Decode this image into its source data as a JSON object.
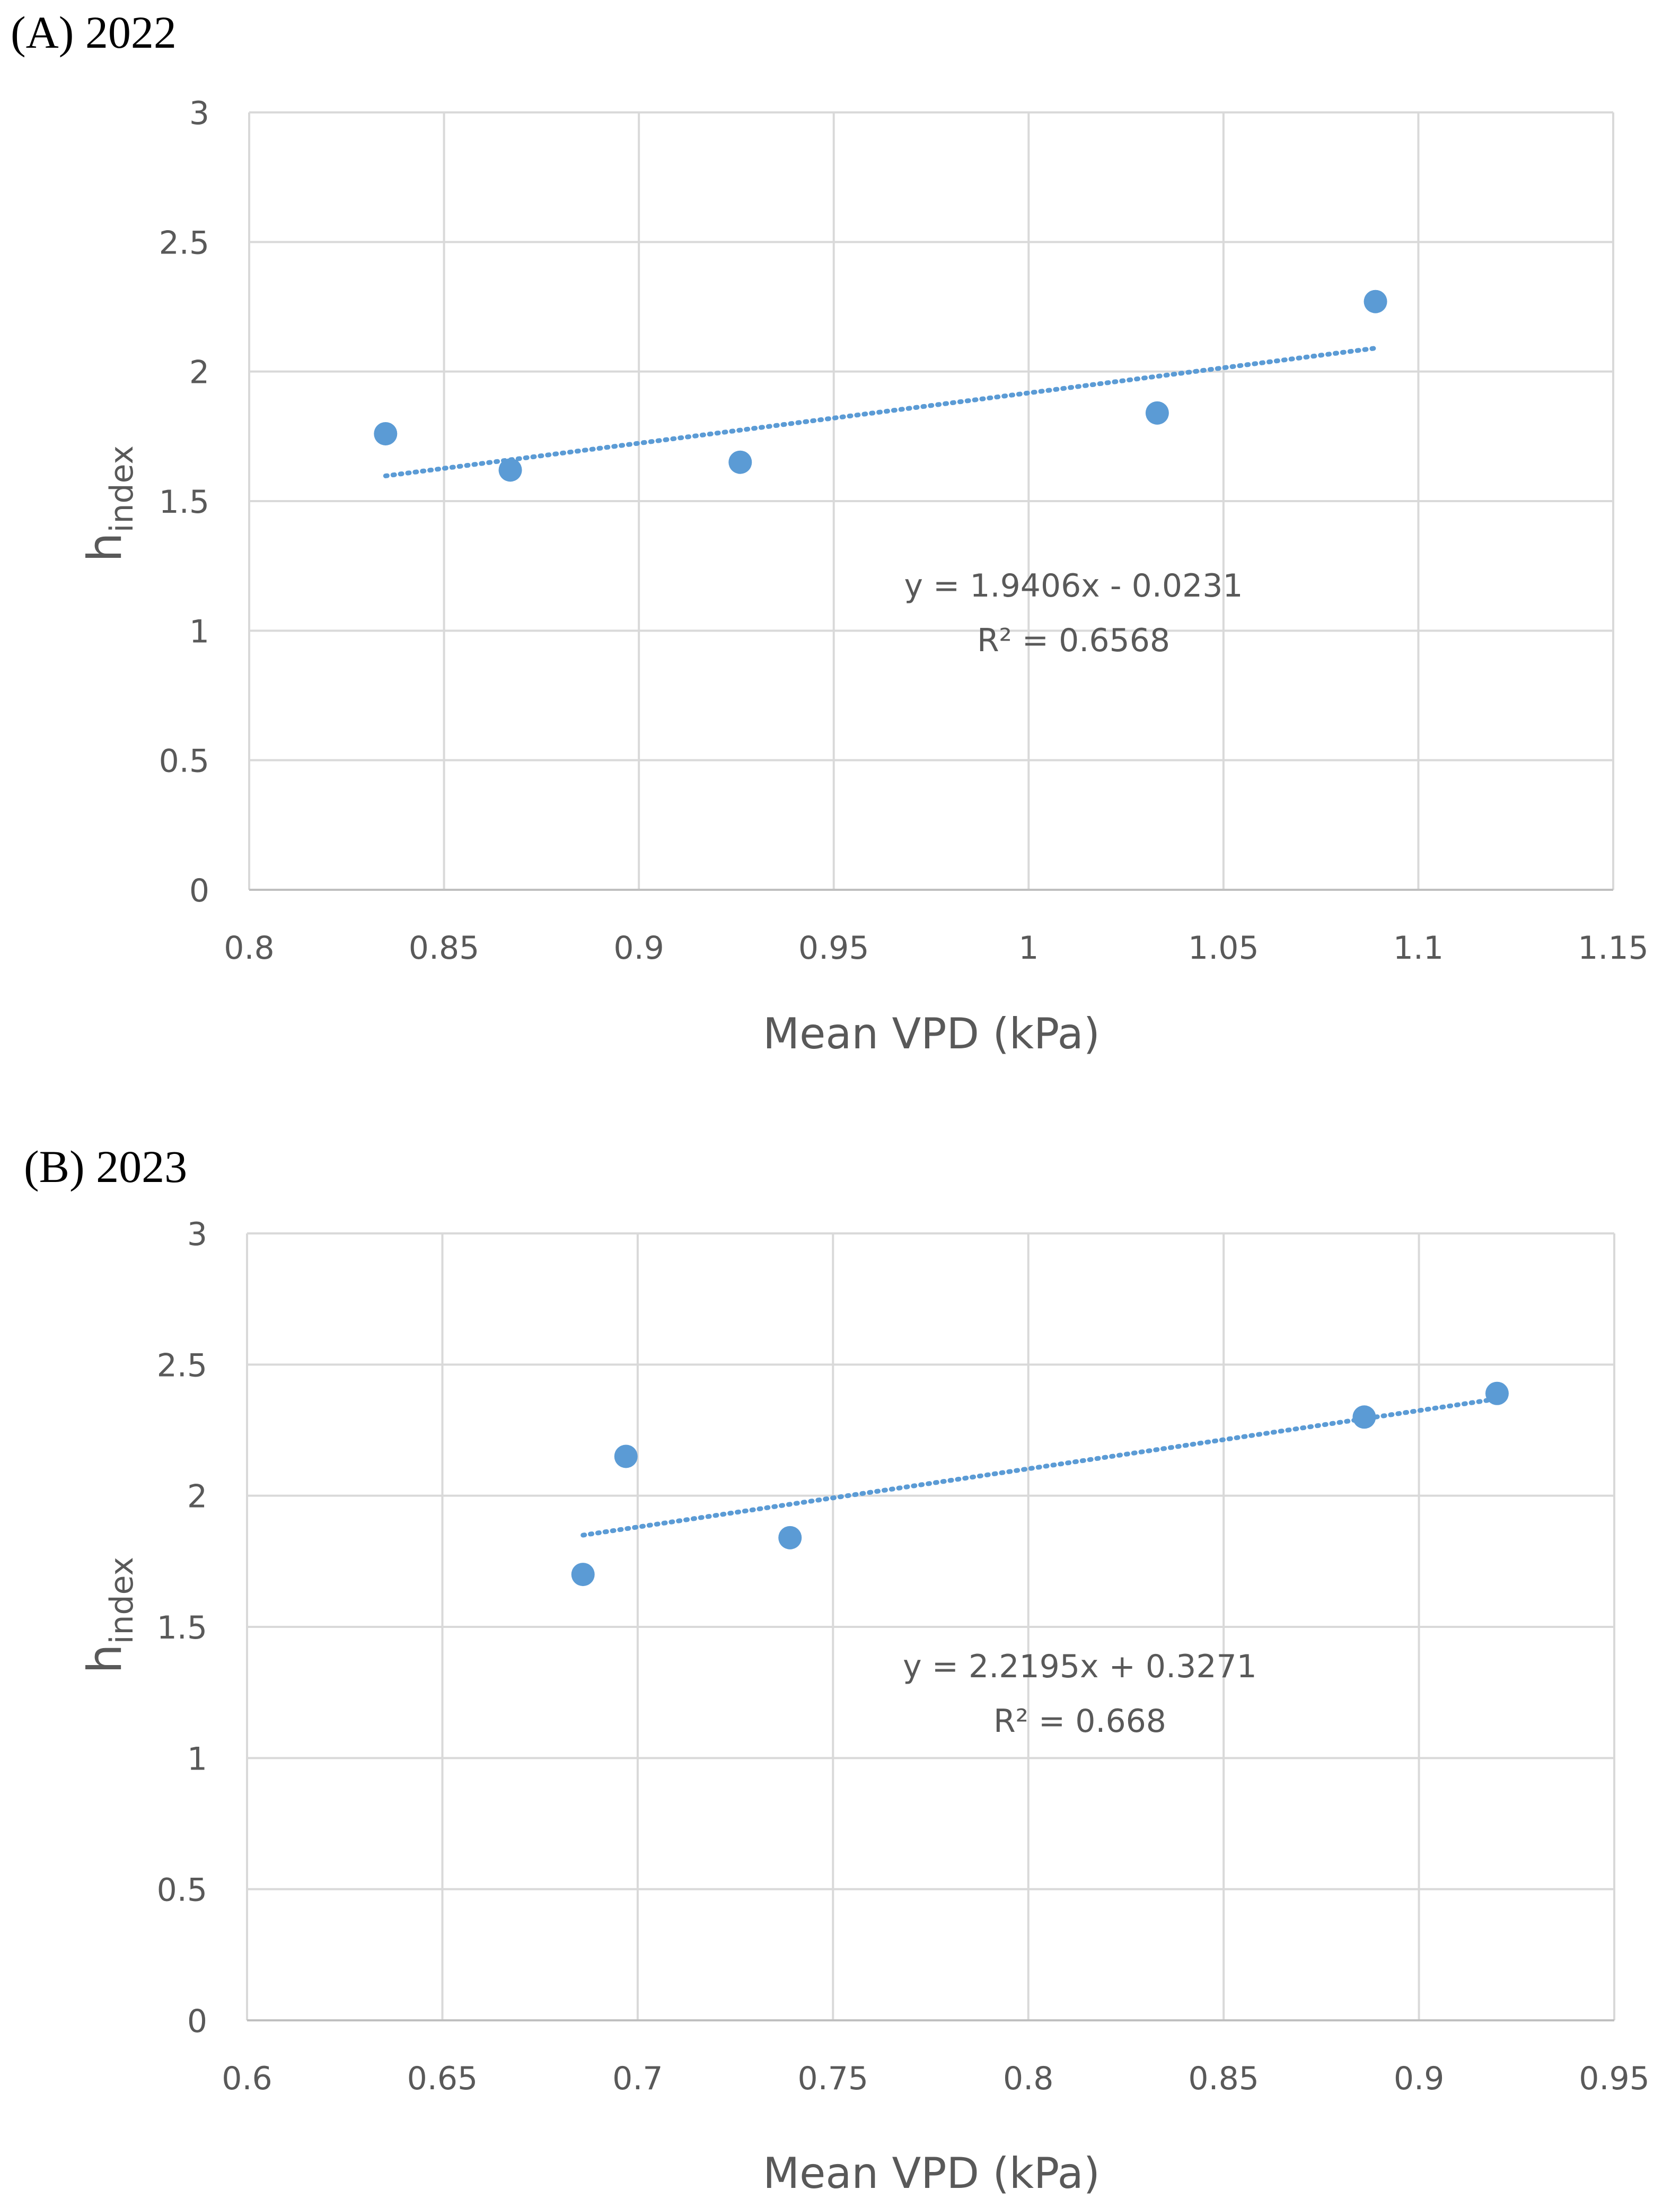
{
  "chart_data": [
    {
      "type": "scatter",
      "panel_label": "(A) 2022",
      "xlabel": "Mean VPD (kPa)",
      "ylabel_main": "h",
      "ylabel_sub": "index",
      "xlim": [
        0.8,
        1.15
      ],
      "xticks": [
        0.8,
        0.85,
        0.9,
        0.95,
        1,
        1.05,
        1.1,
        1.15
      ],
      "xtick_labels": [
        "0.8",
        "0.85",
        "0.9",
        "0.95",
        "1",
        "1.05",
        "1.1",
        "1.15"
      ],
      "ylim": [
        0,
        3
      ],
      "yticks": [
        0,
        0.5,
        1,
        1.5,
        2,
        2.5,
        3
      ],
      "ytick_labels": [
        "0",
        "0.5",
        "1",
        "1.5",
        "2",
        "2.5",
        "3"
      ],
      "points": [
        {
          "x": 0.835,
          "y": 1.76
        },
        {
          "x": 0.867,
          "y": 1.62
        },
        {
          "x": 0.926,
          "y": 1.65
        },
        {
          "x": 1.033,
          "y": 1.84
        },
        {
          "x": 1.089,
          "y": 2.27
        }
      ],
      "trendline": {
        "slope": 1.9406,
        "intercept": -0.0231,
        "x_start": 0.835,
        "x_end": 1.089
      },
      "equation": "y = 1.9406x - 0.0231",
      "r2_label": "R² = 0.6568"
    },
    {
      "type": "scatter",
      "panel_label": "(B) 2023",
      "xlabel": "Mean VPD (kPa)",
      "ylabel_main": "h",
      "ylabel_sub": "index",
      "xlim": [
        0.6,
        0.95
      ],
      "xticks": [
        0.6,
        0.65,
        0.7,
        0.75,
        0.8,
        0.85,
        0.9,
        0.95
      ],
      "xtick_labels": [
        "0.6",
        "0.65",
        "0.7",
        "0.75",
        "0.8",
        "0.85",
        "0.9",
        "0.95"
      ],
      "ylim": [
        0,
        3
      ],
      "yticks": [
        0,
        0.5,
        1,
        1.5,
        2,
        2.5,
        3
      ],
      "ytick_labels": [
        "0",
        "0.5",
        "1",
        "1.5",
        "2",
        "2.5",
        "3"
      ],
      "points": [
        {
          "x": 0.686,
          "y": 1.7
        },
        {
          "x": 0.697,
          "y": 2.15
        },
        {
          "x": 0.739,
          "y": 1.84
        },
        {
          "x": 0.886,
          "y": 2.3
        },
        {
          "x": 0.92,
          "y": 2.39
        }
      ],
      "trendline": {
        "slope": 2.2195,
        "intercept": 0.3271,
        "x_start": 0.686,
        "x_end": 0.92
      },
      "equation": "y = 2.2195x + 0.3271",
      "r2_label": "R² = 0.668"
    }
  ],
  "colors": {
    "marker": "#5b9bd5",
    "gridline": "#d9d9d9",
    "text": "#595959"
  }
}
